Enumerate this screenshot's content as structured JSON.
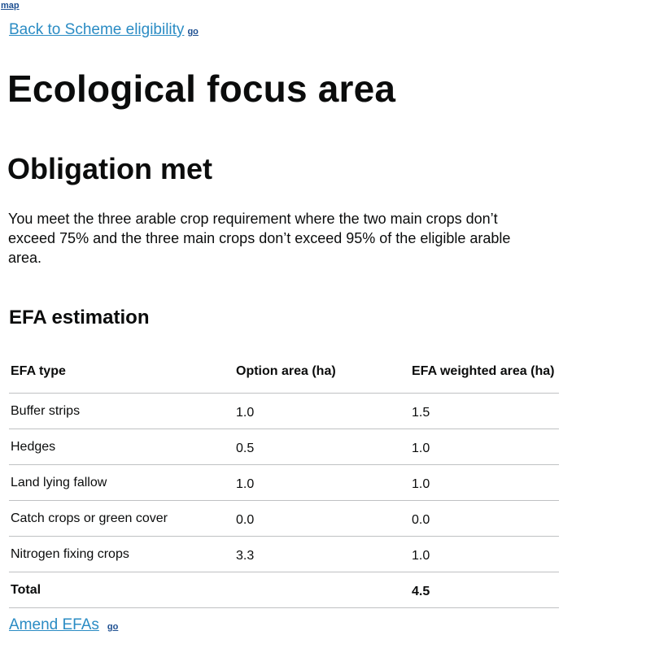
{
  "top_link": "map",
  "back": {
    "label": "Back to Scheme eligibility",
    "go": "go"
  },
  "page_title": "Ecological focus area",
  "status": {
    "heading": "Obligation met",
    "text": "You meet the three arable crop requirement where the two main crops don’t exceed 75% and the three main crops don’t exceed 95% of the eligible arable area."
  },
  "efa": {
    "heading": "EFA estimation",
    "columns": [
      "EFA type",
      "Option area (ha)",
      "EFA weighted area (ha)"
    ],
    "rows": [
      {
        "type": "Buffer strips",
        "option_area": "1.0",
        "weighted_area": "1.5"
      },
      {
        "type": "Hedges",
        "option_area": "0.5",
        "weighted_area": "1.0"
      },
      {
        "type": "Land lying fallow",
        "option_area": "1.0",
        "weighted_area": "1.0"
      },
      {
        "type": "Catch crops or green cover",
        "option_area": "0.0",
        "weighted_area": "0.0"
      },
      {
        "type": "Nitrogen fixing crops",
        "option_area": "3.3",
        "weighted_area": "1.0"
      }
    ],
    "total": {
      "label": "Total",
      "option_area": "",
      "weighted_area": "4.5"
    }
  },
  "amend": {
    "label": "Amend EFAs",
    "go": "go"
  }
}
